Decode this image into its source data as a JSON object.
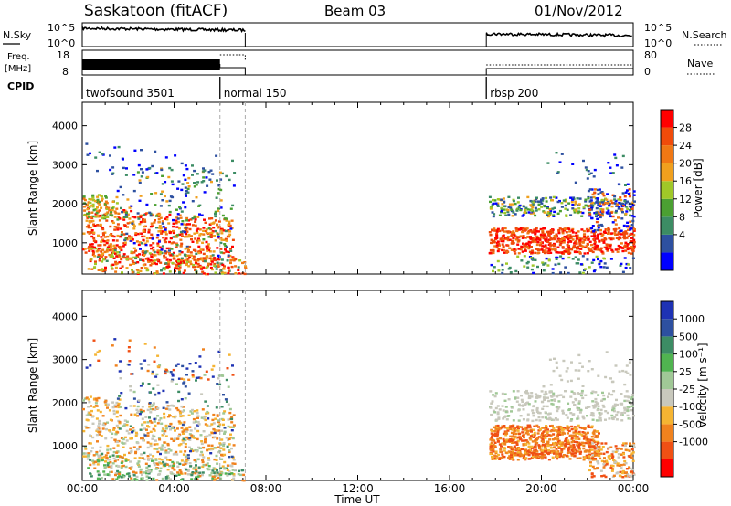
{
  "header": {
    "station": "Saskatoon (fitACF)",
    "beam": "Beam 03",
    "date": "01/Nov/2012"
  },
  "status_panels": {
    "nsky_label": "N.Sky",
    "nsearch_label": "N.Search",
    "freq_label_1": "Freq.",
    "freq_label_2": "[MHz]",
    "nave_label": "Nave",
    "cpid_label": "CPID",
    "noise_ticks": [
      "10^5",
      "10^0"
    ],
    "freq_ticks": [
      "18",
      "8"
    ],
    "nave_ticks": [
      "80",
      "0"
    ]
  },
  "cpid_segments": [
    {
      "label": "twofsound 3501",
      "start_h": 0.0,
      "end_h": 6.0
    },
    {
      "label": "normal 150",
      "start_h": 6.0,
      "end_h": 7.1
    },
    {
      "label": "rbsp 200",
      "start_h": 17.6,
      "end_h": 24.0
    }
  ],
  "colors": {
    "power": [
      "#0000ff",
      "#2d50a0",
      "#3c8c64",
      "#4ba032",
      "#a0c828",
      "#f0a01e",
      "#f07814",
      "#f04b0a",
      "#ff0000"
    ],
    "velocity": [
      "#ff0000",
      "#f05014",
      "#f0821e",
      "#f5b432",
      "#c8c8bc",
      "#a0c896",
      "#50b450",
      "#3c8c64",
      "#2d50a0",
      "#1e32b4"
    ],
    "grey_scatter": "#c8c8bc"
  },
  "chart_data": {
    "type": "heatmap",
    "xlabel": "Time UT",
    "x_ticks": [
      "00:00",
      "04:00",
      "08:00",
      "12:00",
      "16:00",
      "20:00",
      "00:00"
    ],
    "xlim_hours": [
      0,
      24
    ],
    "ylabel": "Slant Range [km]",
    "ylim_km": [
      200,
      4600
    ],
    "y_ticks": [
      1000,
      2000,
      3000,
      4000
    ],
    "power_colorbar": {
      "label": "Power [dB]",
      "ticks": [
        "28",
        "24",
        "20",
        "16",
        "12",
        "8",
        "4"
      ]
    },
    "velocity_colorbar": {
      "label": "Velocity [m s⁻¹]",
      "ticks": [
        "1000",
        "500",
        "100",
        "25",
        "-25",
        "-100",
        "-500",
        "-1000"
      ]
    },
    "data_gaps_hours": [
      [
        7.1,
        17.6
      ]
    ]
  }
}
